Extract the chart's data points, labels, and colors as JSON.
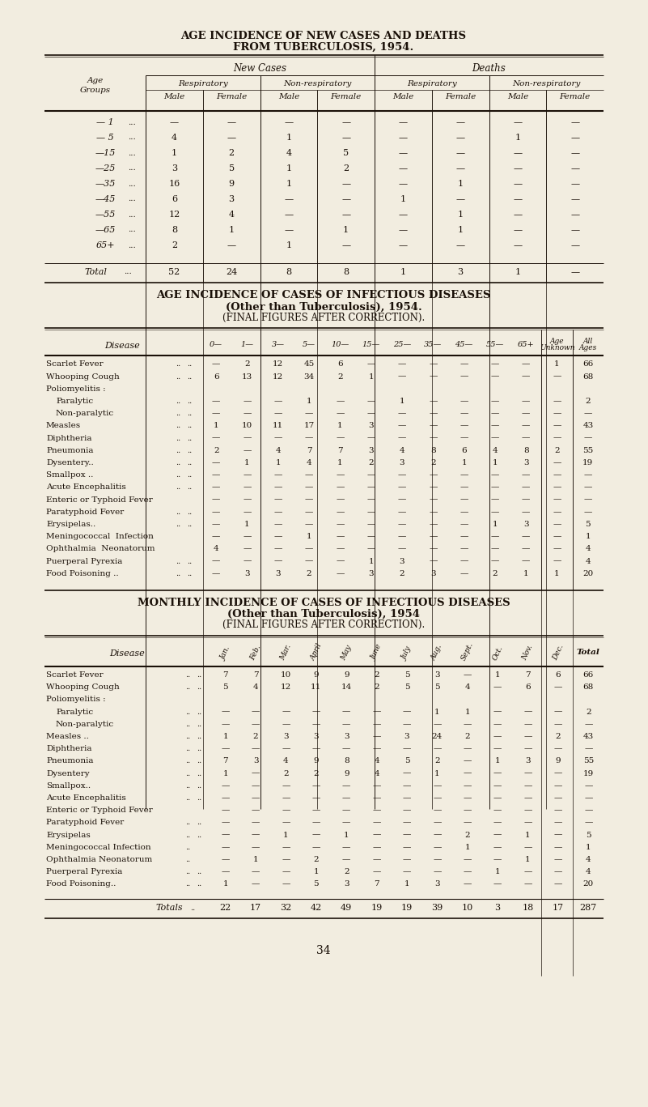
{
  "bg_color": "#f2ede0",
  "text_color": "#1a1008",
  "page_number": "34",
  "table1_title1": "AGE INCIDENCE OF NEW CASES AND DEATHS",
  "table1_title2": "FROM TUBERCULOSIS, 1954.",
  "table1_header_level3": [
    "Male",
    "Female",
    "Male",
    "Female",
    "Male",
    "Female",
    "Male",
    "Female"
  ],
  "table1_rows": [
    [
      "— 1",
      "...",
      "—",
      "—",
      "—",
      "—",
      "—",
      "—",
      "—",
      "—"
    ],
    [
      "— 5",
      "...",
      "4",
      "—",
      "1",
      "—",
      "—",
      "—",
      "1",
      "—"
    ],
    [
      "—15",
      "...",
      "1",
      "2",
      "4",
      "5",
      "—",
      "—",
      "—",
      "—"
    ],
    [
      "—25",
      "...",
      "3",
      "5",
      "1",
      "2",
      "—",
      "—",
      "—",
      "—"
    ],
    [
      "—35",
      "...",
      "16",
      "9",
      "1",
      "—",
      "—",
      "1",
      "—",
      "—"
    ],
    [
      "—45",
      "...",
      "6",
      "3",
      "—",
      "—",
      "1",
      "—",
      "—",
      "—"
    ],
    [
      "—55",
      "...",
      "12",
      "4",
      "—",
      "—",
      "—",
      "1",
      "—",
      "—"
    ],
    [
      "—65",
      "...",
      "8",
      "1",
      "—",
      "1",
      "—",
      "1",
      "—",
      "—"
    ],
    [
      "65+",
      "...",
      "2",
      "—",
      "1",
      "—",
      "—",
      "—",
      "—",
      "—"
    ]
  ],
  "table1_total": [
    "Total",
    "...",
    "52",
    "24",
    "8",
    "8",
    "1",
    "3",
    "1",
    "—"
  ],
  "table2_title1": "AGE INCIDENCE OF CASES OF INFECTIOUS DISEASES",
  "table2_title2": "(Other than Tuberculosis), 1954.",
  "table2_title3": "(FINAL FIGURES AFTER CORRECTION).",
  "table2_age_cols": [
    "0—",
    "1—",
    "3—",
    "5—",
    "10—",
    "15—",
    "25—",
    "35—",
    "45—",
    "55—",
    "65+",
    "Age\nUnknown",
    "All\nAges"
  ],
  "table2_rows": [
    [
      "Scarlet Fever",
      "..",
      "..",
      "—",
      "2",
      "12",
      "45",
      "6",
      "—",
      "—",
      "—",
      "—",
      "—",
      "—",
      "1",
      "66"
    ],
    [
      "Whooping Cough",
      "..",
      "..",
      "6",
      "13",
      "12",
      "34",
      "2",
      "1",
      "—",
      "—",
      "—",
      "—",
      "—",
      "—",
      "68"
    ],
    [
      "Poliomyelitis :",
      "",
      "",
      "",
      "",
      "",
      "",
      "",
      "",
      "",
      "",
      "",
      "",
      "",
      "",
      ""
    ],
    [
      "    Paralytic",
      "..",
      "..",
      "—",
      "—",
      "—",
      "1",
      "—",
      "—",
      "1",
      "—",
      "—",
      "—",
      "—",
      "—",
      "2"
    ],
    [
      "    Non-paralytic",
      "..",
      "..",
      "—",
      "—",
      "—",
      "—",
      "—",
      "—",
      "—",
      "—",
      "—",
      "—",
      "—",
      "—",
      "—"
    ],
    [
      "Measles",
      "..",
      "..",
      "1",
      "10",
      "11",
      "17",
      "1",
      "3",
      "—",
      "—",
      "—",
      "—",
      "—",
      "—",
      "43"
    ],
    [
      "Diphtheria",
      "..",
      "..",
      "—",
      "—",
      "—",
      "—",
      "—",
      "—",
      "—",
      "—",
      "—",
      "—",
      "—",
      "—",
      "—"
    ],
    [
      "Pneumonia",
      "..",
      "..",
      "2",
      "—",
      "4",
      "7",
      "7",
      "3",
      "4",
      "8",
      "6",
      "4",
      "8",
      "2",
      "55"
    ],
    [
      "Dysentery..",
      "..",
      "..",
      "—",
      "1",
      "1",
      "4",
      "1",
      "2",
      "3",
      "2",
      "1",
      "1",
      "3",
      "—",
      "19"
    ],
    [
      "Smallpox ..",
      "..",
      "..",
      "—",
      "—",
      "—",
      "—",
      "—",
      "—",
      "—",
      "—",
      "—",
      "—",
      "—",
      "—",
      "—"
    ],
    [
      "Acute Encephalitis",
      "..",
      "..",
      "—",
      "—",
      "—",
      "—",
      "—",
      "—",
      "—",
      "—",
      "—",
      "—",
      "—",
      "—",
      "—"
    ],
    [
      "Enteric or Typhoid Fever",
      "",
      "",
      "—",
      "—",
      "—",
      "—",
      "—",
      "—",
      "—",
      "—",
      "—",
      "—",
      "—",
      "—",
      "—"
    ],
    [
      "Paratyphoid Fever",
      "..",
      "..",
      "—",
      "—",
      "—",
      "—",
      "—",
      "—",
      "—",
      "—",
      "—",
      "—",
      "—",
      "—",
      "—"
    ],
    [
      "Erysipelas..",
      "..",
      "..",
      "—",
      "1",
      "—",
      "—",
      "—",
      "—",
      "—",
      "—",
      "—",
      "1",
      "3",
      "—",
      "5"
    ],
    [
      "Meningococcal  Infection",
      "",
      "",
      "—",
      "—",
      "—",
      "1",
      "—",
      "—",
      "—",
      "—",
      "—",
      "—",
      "—",
      "—",
      "1"
    ],
    [
      "Ophthalmia  Neonatorum",
      "",
      "",
      "4",
      "—",
      "—",
      "—",
      "—",
      "—",
      "—",
      "—",
      "—",
      "—",
      "—",
      "—",
      "4"
    ],
    [
      "Puerperal Pyrexia",
      "..",
      "..",
      "—",
      "—",
      "—",
      "—",
      "—",
      "1",
      "3",
      "—",
      "—",
      "—",
      "—",
      "—",
      "4"
    ],
    [
      "Food Poisoning ..",
      "..",
      "..",
      "—",
      "3",
      "3",
      "2",
      "—",
      "3",
      "2",
      "3",
      "—",
      "2",
      "1",
      "1",
      "20"
    ]
  ],
  "table3_title1": "MONTHLY INCIDENCE OF CASES OF INFECTIOUS DISEASES",
  "table3_title2": "(Other than Tuberculosis), 1954",
  "table3_title3": "(FINAL FIGURES AFTER CORRECTION).",
  "table3_month_cols": [
    "Jan.",
    "Feb.",
    "Mar.",
    "April",
    "May",
    "June",
    "July",
    "Aug.",
    "Sept.",
    "Oct.",
    "Nov.",
    "Dec.",
    "Total"
  ],
  "table3_rows": [
    [
      "Scarlet Fever",
      "..",
      "..",
      "7",
      "7",
      "10",
      "9",
      "9",
      "2",
      "5",
      "3",
      "—",
      "1",
      "7",
      "6",
      "66"
    ],
    [
      "Whooping Cough",
      "..",
      "..",
      "5",
      "4",
      "12",
      "11",
      "14",
      "2",
      "5",
      "5",
      "4",
      "—",
      "6",
      "—",
      "68"
    ],
    [
      "Poliomyelitis :",
      "",
      "",
      "",
      "",
      "",
      "",
      "",
      "",
      "",
      "",
      "",
      "",
      "",
      "",
      ""
    ],
    [
      "    Paralytic",
      "..",
      "..",
      "—",
      "—",
      "—",
      "—",
      "—",
      "—",
      "—",
      "1",
      "1",
      "—",
      "—",
      "—",
      "2"
    ],
    [
      "    Non-paralytic",
      "..",
      "..",
      "—",
      "—",
      "—",
      "—",
      "—",
      "—",
      "—",
      "—",
      "—",
      "—",
      "—",
      "—",
      "—"
    ],
    [
      "Measles ..",
      "..",
      "..",
      "1",
      "2",
      "3",
      "3",
      "3",
      "—",
      "3",
      "24",
      "2",
      "—",
      "—",
      "2",
      "43"
    ],
    [
      "Diphtheria",
      "..",
      "..",
      "—",
      "—",
      "—",
      "—",
      "—",
      "—",
      "—",
      "—",
      "—",
      "—",
      "—",
      "—",
      "—"
    ],
    [
      "Pneumonia",
      "..",
      "..",
      "7",
      "3",
      "4",
      "9",
      "8",
      "4",
      "5",
      "2",
      "—",
      "1",
      "3",
      "9",
      "55"
    ],
    [
      "Dysentery",
      "..",
      "..",
      "1",
      "—",
      "2",
      "2",
      "9",
      "4",
      "—",
      "1",
      "—",
      "—",
      "—",
      "—",
      "19"
    ],
    [
      "Smallpox..",
      "..",
      "..",
      "—",
      "—",
      "—",
      "—",
      "—",
      "—",
      "—",
      "—",
      "—",
      "—",
      "—",
      "—",
      "—"
    ],
    [
      "Acute Encephalitis",
      "..",
      "..",
      "—",
      "—",
      "—",
      "—",
      "—",
      "—",
      "—",
      "—",
      "—",
      "—",
      "—",
      "—",
      "—"
    ],
    [
      "Enteric or Typhoid Fever",
      "",
      "",
      "—",
      "—",
      "—",
      "—",
      "—",
      "—",
      "—",
      "—",
      "—",
      "—",
      "—",
      "—",
      "—"
    ],
    [
      "Paratyphoid Fever",
      "..",
      "..",
      "—",
      "—",
      "—",
      "—",
      "—",
      "—",
      "—",
      "—",
      "—",
      "—",
      "—",
      "—",
      "—"
    ],
    [
      "Erysipelas",
      "..",
      "..",
      "—",
      "—",
      "1",
      "—",
      "1",
      "—",
      "—",
      "—",
      "2",
      "—",
      "1",
      "—",
      "5"
    ],
    [
      "Meningococcal Infection",
      "..",
      "",
      "—",
      "—",
      "—",
      "—",
      "—",
      "—",
      "—",
      "—",
      "1",
      "—",
      "—",
      "—",
      "1"
    ],
    [
      "Ophthalmia Neonatorum",
      "..",
      "",
      "—",
      "1",
      "—",
      "2",
      "—",
      "—",
      "—",
      "—",
      "—",
      "—",
      "1",
      "—",
      "4"
    ],
    [
      "Puerperal Pyrexia",
      "..",
      "..",
      "—",
      "—",
      "—",
      "1",
      "2",
      "—",
      "—",
      "—",
      "—",
      "1",
      "—",
      "—",
      "4"
    ],
    [
      "Food Poisoning..",
      "..",
      "..",
      "1",
      "—",
      "—",
      "5",
      "3",
      "7",
      "1",
      "3",
      "—",
      "—",
      "—",
      "—",
      "20"
    ]
  ],
  "table3_totals": [
    "Totals",
    "..",
    "22",
    "17",
    "32",
    "42",
    "49",
    "19",
    "19",
    "39",
    "10",
    "3",
    "18",
    "17",
    "287"
  ]
}
